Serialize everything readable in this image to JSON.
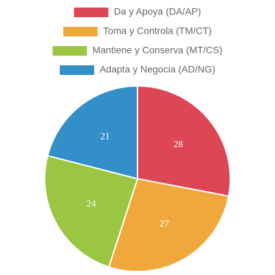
{
  "chart_data": {
    "type": "pie",
    "categories": [
      "Da y Apoya (DA/AP)",
      "Toma y Controla (TM/CT)",
      "Mantiene y Conserva (MT/CS)",
      "Adapta y Negocia (AD/NG)"
    ],
    "values": [
      28,
      27,
      24,
      21
    ],
    "colors": [
      "#dc4655",
      "#f0a83c",
      "#9bc642",
      "#338fc8"
    ],
    "legend": "top"
  }
}
